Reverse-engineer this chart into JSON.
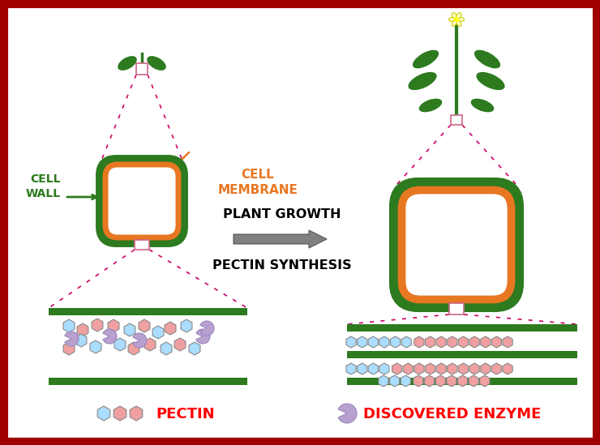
{
  "bg_color": "#ffffff",
  "border_color": "#a00000",
  "border_width": 8,
  "cell_wall_color": "#2d7a1f",
  "cell_membrane_color": "#e87722",
  "cell_wall_text_color": "#2d7a1f",
  "cell_membrane_text_color": "#e87722",
  "arrow_color": "#808080",
  "plant_growth_text": "PLANT GROWTH",
  "pectin_synthesis_text": "PECTIN SYNTHESIS",
  "cell_wall_label": "CELL\nWALL",
  "cell_membrane_label": "CELL\nMEMBRANE",
  "pectin_label": "PECTIN",
  "enzyme_label": "DISCOVERED ENZYME",
  "label_color": "#ff0000",
  "pectin_blue_color": "#aaddff",
  "pectin_pink_color": "#f0a0a0",
  "enzyme_color": "#b8a0d0",
  "green_stripe_color": "#2d7a1f",
  "dashed_line_color": "#cc0066",
  "small_box_color": "#cc6688"
}
